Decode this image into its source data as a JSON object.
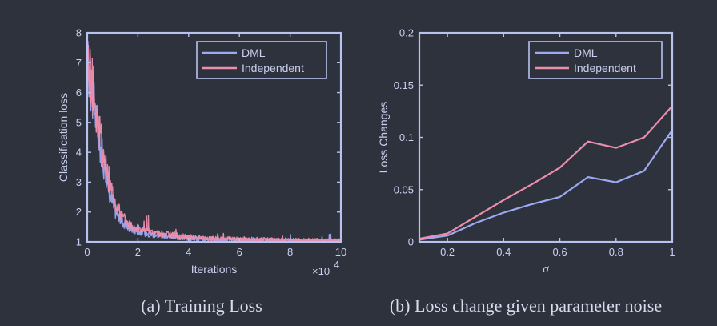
{
  "colors": {
    "background": "#2e323c",
    "axis": "#b8c2ee",
    "text": "#c9d0f0",
    "dml": "#9da9f2",
    "independent": "#ee8ead"
  },
  "captions": {
    "a": "(a) Training Loss",
    "b": "(b) Loss change given parameter noise"
  },
  "chart_data": [
    {
      "type": "line",
      "xlabel": "Iterations",
      "ylabel": "Classification loss",
      "x_multiplier": "×10",
      "x_multiplier_exp": "4",
      "xlim": [
        0,
        10
      ],
      "ylim": [
        1,
        8
      ],
      "xticks": [
        0,
        2,
        4,
        6,
        8,
        10
      ],
      "yticks": [
        1,
        2,
        3,
        4,
        5,
        6,
        7,
        8
      ],
      "legend_position": "top-right",
      "series": [
        {
          "name": "DML",
          "color": "#9da9f2",
          "noisy": true,
          "x": [
            0,
            0.1,
            0.2,
            0.35,
            0.5,
            0.7,
            0.9,
            1.1,
            1.3,
            1.6,
            2.0,
            2.5,
            3.0,
            4.0,
            5.0,
            6.0,
            7.0,
            8.0,
            9.0,
            10.0
          ],
          "values": [
            6.9,
            6.6,
            6.0,
            5.2,
            4.3,
            3.4,
            2.6,
            2.05,
            1.75,
            1.5,
            1.35,
            1.25,
            1.2,
            1.12,
            1.08,
            1.06,
            1.05,
            1.04,
            1.03,
            1.03
          ]
        },
        {
          "name": "Independent",
          "color": "#ee8ead",
          "noisy": true,
          "x": [
            0,
            0.1,
            0.2,
            0.35,
            0.5,
            0.7,
            0.9,
            1.1,
            1.3,
            1.6,
            2.0,
            2.5,
            3.0,
            4.0,
            5.0,
            6.0,
            7.0,
            8.0,
            9.0,
            10.0
          ],
          "values": [
            7.1,
            6.8,
            6.2,
            5.4,
            4.6,
            3.7,
            2.9,
            2.3,
            1.95,
            1.65,
            1.45,
            1.32,
            1.26,
            1.16,
            1.11,
            1.09,
            1.07,
            1.06,
            1.05,
            1.05
          ]
        }
      ]
    },
    {
      "type": "line",
      "xlabel": "σ",
      "ylabel": "Loss Changes",
      "xlim": [
        0.1,
        1
      ],
      "ylim": [
        0,
        0.2
      ],
      "xticks": [
        0.2,
        0.4,
        0.6,
        0.8,
        1
      ],
      "xtick_labels": [
        "0.2",
        "0.4",
        "0.6",
        "0.8",
        "1"
      ],
      "yticks": [
        0,
        0.05,
        0.1,
        0.15,
        0.2
      ],
      "ytick_labels": [
        "0",
        "0.05",
        "0.1",
        "0.15",
        "0.2"
      ],
      "legend_position": "top-right",
      "x": [
        0.1,
        0.2,
        0.3,
        0.4,
        0.5,
        0.6,
        0.7,
        0.8,
        0.9,
        1.0
      ],
      "series": [
        {
          "name": "DML",
          "color": "#9da9f2",
          "values": [
            0.002,
            0.006,
            0.018,
            0.028,
            0.036,
            0.043,
            0.062,
            0.057,
            0.068,
            0.107
          ]
        },
        {
          "name": "Independent",
          "color": "#ee8ead",
          "values": [
            0.003,
            0.008,
            0.024,
            0.04,
            0.055,
            0.071,
            0.096,
            0.09,
            0.1,
            0.13
          ]
        }
      ]
    }
  ]
}
